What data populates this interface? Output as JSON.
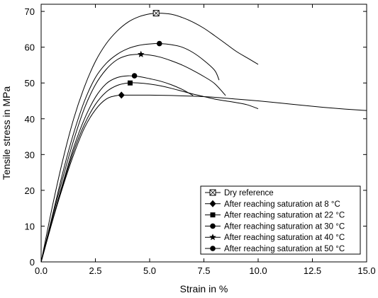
{
  "chart_data": {
    "type": "line",
    "xlabel": "Strain in %",
    "ylabel": "Tensile stress in MPa",
    "xlim": [
      0,
      15
    ],
    "ylim": [
      0,
      72
    ],
    "x_ticks": [
      "0.0",
      "2.5",
      "5.0",
      "7.5",
      "10.0",
      "12.5",
      "15.0"
    ],
    "y_ticks": [
      "0",
      "10",
      "20",
      "30",
      "40",
      "50",
      "60",
      "70"
    ],
    "grid": false,
    "legend_position": "bottom-right",
    "series": [
      {
        "name": "Dry reference",
        "marker": "square-x",
        "points": [
          [
            0,
            0
          ],
          [
            0.5,
            15
          ],
          [
            1,
            28.5
          ],
          [
            1.5,
            40
          ],
          [
            2,
            49
          ],
          [
            2.5,
            56
          ],
          [
            3,
            61
          ],
          [
            3.5,
            64.5
          ],
          [
            4,
            67
          ],
          [
            4.5,
            68.5
          ],
          [
            5,
            69.3
          ],
          [
            5.4,
            69.5
          ],
          [
            6,
            69.2
          ],
          [
            6.5,
            68.3
          ],
          [
            7,
            67
          ],
          [
            7.5,
            65.3
          ],
          [
            8,
            63.2
          ],
          [
            8.5,
            61
          ],
          [
            9,
            58.8
          ],
          [
            9.5,
            57
          ],
          [
            10,
            55.2
          ]
        ],
        "marker_at": [
          5.3,
          69.5
        ]
      },
      {
        "name": "After reaching saturation at 8 °C",
        "marker": "diamond",
        "points": [
          [
            0,
            0
          ],
          [
            0.5,
            11
          ],
          [
            1,
            21
          ],
          [
            1.5,
            30
          ],
          [
            2,
            37.5
          ],
          [
            2.5,
            42.5
          ],
          [
            3,
            45.5
          ],
          [
            3.5,
            46.5
          ],
          [
            4,
            46.6
          ],
          [
            5,
            46.6
          ],
          [
            6,
            46.5
          ],
          [
            7,
            46.3
          ],
          [
            8,
            46
          ],
          [
            9,
            45.5
          ],
          [
            10,
            45
          ],
          [
            11,
            44.4
          ],
          [
            12,
            43.8
          ],
          [
            13,
            43.2
          ],
          [
            14,
            42.7
          ],
          [
            15,
            42.3
          ]
        ],
        "marker_at": [
          3.7,
          46.6
        ]
      },
      {
        "name": "After reaching saturation at 22 °C",
        "marker": "square",
        "points": [
          [
            0,
            0
          ],
          [
            0.5,
            11
          ],
          [
            1,
            21.5
          ],
          [
            1.5,
            31
          ],
          [
            2,
            38.5
          ],
          [
            2.5,
            44
          ],
          [
            3,
            47.5
          ],
          [
            3.5,
            49.3
          ],
          [
            4,
            50
          ],
          [
            4.5,
            50
          ],
          [
            5,
            49.7
          ],
          [
            5.5,
            49.2
          ],
          [
            6,
            48.5
          ],
          [
            6.5,
            47.7
          ],
          [
            7,
            46.9
          ],
          [
            7.5,
            46.2
          ],
          [
            8,
            45.5
          ],
          [
            8.5,
            45
          ],
          [
            9,
            44.5
          ],
          [
            9.5,
            43.9
          ],
          [
            10,
            42.8
          ]
        ],
        "marker_at": [
          4.1,
          50
        ]
      },
      {
        "name": "After reaching saturation at 30 °C",
        "marker": "circle",
        "points": [
          [
            0,
            0
          ],
          [
            0.5,
            11.2
          ],
          [
            1,
            22
          ],
          [
            1.5,
            32
          ],
          [
            2,
            40
          ],
          [
            2.5,
            46
          ],
          [
            3,
            49.8
          ],
          [
            3.5,
            51.5
          ],
          [
            4,
            52
          ],
          [
            4.5,
            51.8
          ],
          [
            5,
            51.2
          ],
          [
            5.5,
            50.5
          ],
          [
            6,
            49.5
          ],
          [
            6.5,
            48.2
          ],
          [
            7,
            46.5
          ]
        ],
        "marker_at": [
          4.3,
          52
        ]
      },
      {
        "name": "After reaching saturation at 40 °C",
        "marker": "star",
        "points": [
          [
            0,
            0
          ],
          [
            0.5,
            12
          ],
          [
            1,
            23.5
          ],
          [
            1.5,
            34
          ],
          [
            2,
            43
          ],
          [
            2.5,
            49.5
          ],
          [
            3,
            53.8
          ],
          [
            3.5,
            56.5
          ],
          [
            4,
            57.7
          ],
          [
            4.5,
            58
          ],
          [
            5,
            57.8
          ],
          [
            5.5,
            57.2
          ],
          [
            6,
            56.2
          ],
          [
            6.5,
            55
          ],
          [
            7,
            53.5
          ],
          [
            7.5,
            51.8
          ],
          [
            8,
            49.8
          ],
          [
            8.5,
            46.5
          ]
        ],
        "marker_at": [
          4.6,
          58
        ]
      },
      {
        "name": "After reaching saturation at 50 °C",
        "marker": "circle",
        "points": [
          [
            0,
            0
          ],
          [
            0.5,
            12.5
          ],
          [
            1,
            25
          ],
          [
            1.5,
            36
          ],
          [
            2,
            45
          ],
          [
            2.5,
            51.5
          ],
          [
            3,
            55.5
          ],
          [
            3.5,
            58
          ],
          [
            4,
            59.6
          ],
          [
            4.5,
            60.5
          ],
          [
            5,
            60.9
          ],
          [
            5.5,
            61
          ],
          [
            6,
            60.7
          ],
          [
            6.5,
            60
          ],
          [
            7,
            58.5
          ],
          [
            7.5,
            56.3
          ],
          [
            8,
            53.5
          ],
          [
            8.2,
            50.8
          ]
        ],
        "marker_at": [
          5.45,
          61
        ]
      }
    ]
  }
}
